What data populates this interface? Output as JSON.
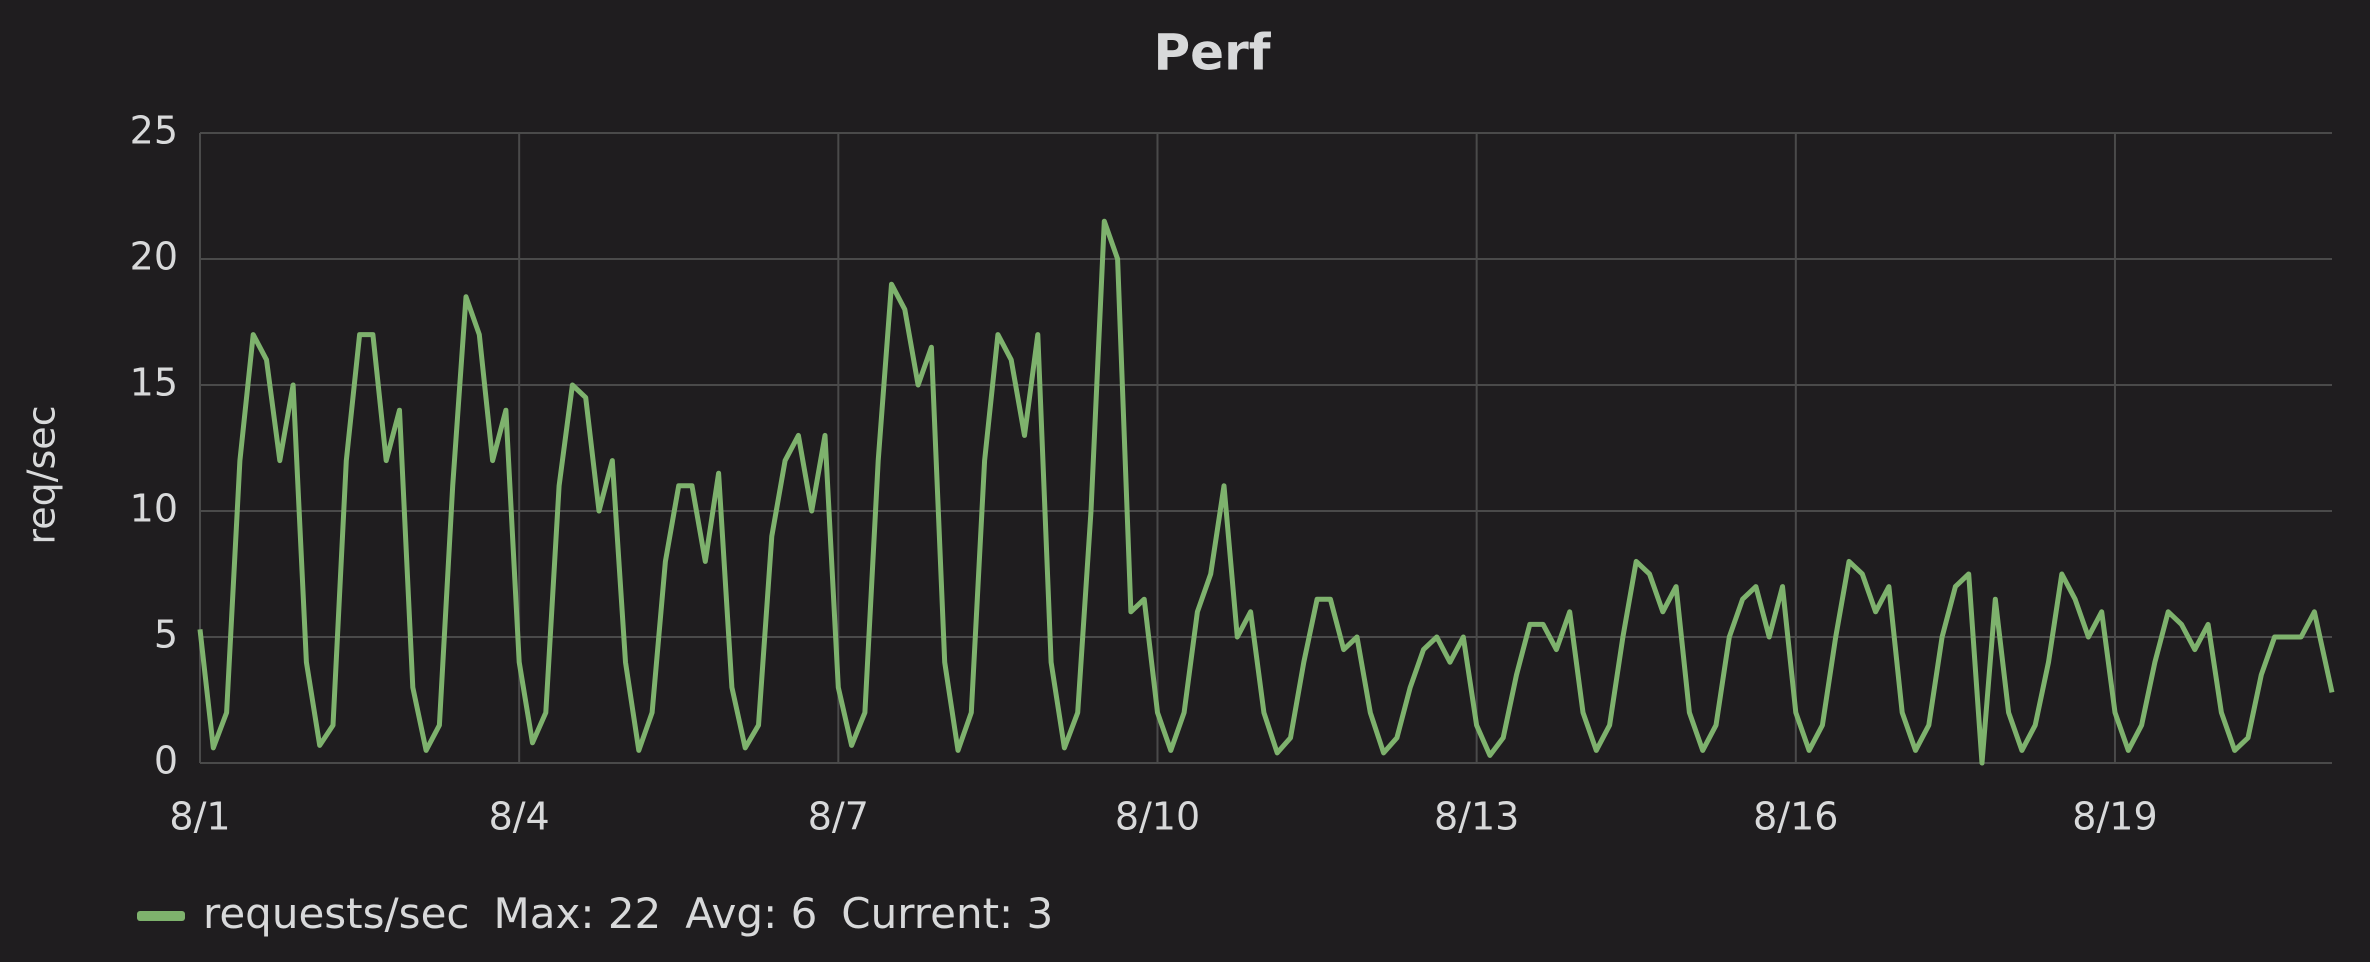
{
  "chart_data": {
    "type": "line",
    "title": "Perf",
    "y_label": "req/sec",
    "x": [
      1,
      1.125,
      1.25,
      1.375,
      1.5,
      1.625,
      1.75,
      1.875,
      2,
      2.125,
      2.25,
      2.375,
      2.5,
      2.625,
      2.75,
      2.875,
      3,
      3.125,
      3.25,
      3.375,
      3.5,
      3.625,
      3.75,
      3.875,
      4,
      4.125,
      4.25,
      4.375,
      4.5,
      4.625,
      4.75,
      4.875,
      5,
      5.125,
      5.25,
      5.375,
      5.5,
      5.625,
      5.75,
      5.875,
      6,
      6.125,
      6.25,
      6.375,
      6.5,
      6.625,
      6.75,
      6.875,
      7,
      7.125,
      7.25,
      7.375,
      7.5,
      7.625,
      7.75,
      7.875,
      8,
      8.125,
      8.25,
      8.375,
      8.5,
      8.625,
      8.75,
      8.875,
      9,
      9.125,
      9.25,
      9.375,
      9.5,
      9.625,
      9.75,
      9.875,
      10,
      10.125,
      10.25,
      10.375,
      10.5,
      10.625,
      10.75,
      10.875,
      11,
      11.125,
      11.25,
      11.375,
      11.5,
      11.625,
      11.75,
      11.875,
      12,
      12.125,
      12.25,
      12.375,
      12.5,
      12.625,
      12.75,
      12.875,
      13,
      13.125,
      13.25,
      13.375,
      13.5,
      13.625,
      13.75,
      13.875,
      14,
      14.125,
      14.25,
      14.375,
      14.5,
      14.625,
      14.75,
      14.875,
      15,
      15.125,
      15.25,
      15.375,
      15.5,
      15.625,
      15.75,
      15.875,
      16,
      16.125,
      16.25,
      16.375,
      16.5,
      16.625,
      16.75,
      16.875,
      17,
      17.125,
      17.25,
      17.375,
      17.5,
      17.625,
      17.75,
      17.875,
      18,
      18.125,
      18.25,
      18.375,
      18.5,
      18.625,
      18.75,
      18.875,
      19,
      19.125,
      19.25,
      19.375,
      19.5,
      19.625,
      19.75,
      19.875,
      20,
      20.125,
      20.25,
      20.375,
      20.5,
      20.625,
      20.75,
      20.875,
      21.04
    ],
    "series": [
      {
        "name": "requests/sec",
        "color": "#7eb26d",
        "values": [
          5.3,
          0.6,
          2,
          12,
          17,
          16,
          12,
          15,
          4,
          0.7,
          1.5,
          12,
          17,
          17,
          12,
          14,
          3,
          0.5,
          1.5,
          11,
          18.5,
          17,
          12,
          14,
          4,
          0.8,
          2,
          11,
          15,
          14.5,
          10,
          12,
          4,
          0.5,
          2,
          8,
          11,
          11,
          8,
          11.5,
          3,
          0.6,
          1.5,
          9,
          12,
          13,
          10,
          13,
          3,
          0.7,
          2,
          12,
          19,
          18,
          15,
          16.5,
          4,
          0.5,
          2,
          12,
          17,
          16,
          13,
          17,
          4,
          0.6,
          2,
          10,
          21.5,
          20,
          6,
          6.5,
          2,
          0.5,
          2,
          6,
          7.5,
          11,
          5,
          6,
          2,
          0.4,
          1,
          4,
          6.5,
          6.5,
          4.5,
          5,
          2,
          0.4,
          1,
          3,
          4.5,
          5,
          4,
          5,
          1.5,
          0.3,
          1,
          3.5,
          5.5,
          5.5,
          4.5,
          6,
          2,
          0.5,
          1.5,
          5,
          8,
          7.5,
          6,
          7,
          2,
          0.5,
          1.5,
          5,
          6.5,
          7,
          5,
          7,
          2,
          0.5,
          1.5,
          5,
          8,
          7.5,
          6,
          7,
          2,
          0.5,
          1.5,
          5,
          7,
          7.5,
          0,
          6.5,
          2,
          0.5,
          1.5,
          4,
          7.5,
          6.5,
          5,
          6,
          2,
          0.5,
          1.5,
          4,
          6,
          5.5,
          4.5,
          5.5,
          2,
          0.5,
          1,
          3.5,
          5,
          5,
          5,
          6,
          2.8
        ]
      }
    ],
    "legend_stats": [
      "Max: 22",
      "Avg: 6",
      "Current: 3"
    ],
    "xlim": [
      1,
      21.04
    ],
    "xticks": [
      {
        "value": 1,
        "label": "8/1"
      },
      {
        "value": 4,
        "label": "8/4"
      },
      {
        "value": 7,
        "label": "8/7"
      },
      {
        "value": 10,
        "label": "8/10"
      },
      {
        "value": 13,
        "label": "8/13"
      },
      {
        "value": 16,
        "label": "8/16"
      },
      {
        "value": 19,
        "label": "8/19"
      }
    ],
    "ylim": [
      0,
      25
    ],
    "yticks": [
      0,
      5,
      10,
      15,
      20,
      25
    ],
    "grid": true
  }
}
